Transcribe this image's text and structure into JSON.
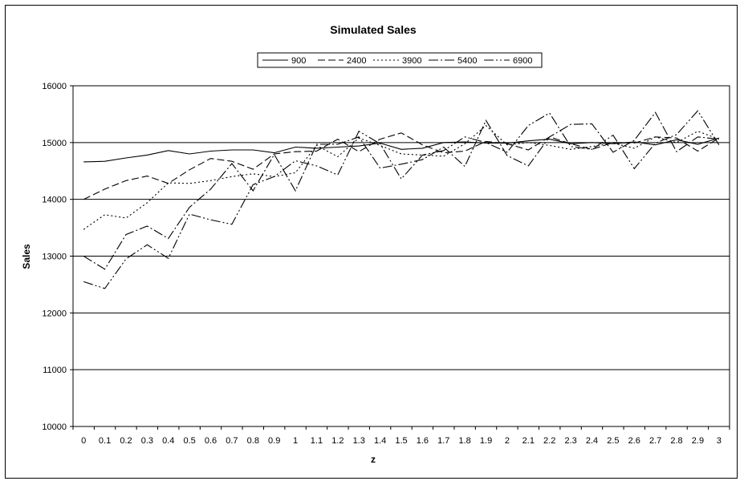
{
  "chart_data": {
    "type": "line",
    "title": "Simulated Sales",
    "xlabel": "z",
    "ylabel": "Sales",
    "ylim": [
      10000,
      16000
    ],
    "yticks": [
      10000,
      11000,
      12000,
      13000,
      14000,
      15000,
      16000
    ],
    "grid": "horizontal",
    "legend_position": "top",
    "x": [
      0,
      0.1,
      0.2,
      0.3,
      0.4,
      0.5,
      0.6,
      0.7,
      0.8,
      0.9,
      1,
      1.1,
      1.2,
      1.3,
      1.4,
      1.5,
      1.6,
      1.7,
      1.8,
      1.9,
      2,
      2.1,
      2.2,
      2.3,
      2.4,
      2.5,
      2.6,
      2.7,
      2.8,
      2.9,
      3
    ],
    "x_tick_labels": [
      "0",
      "0.1",
      "0.2",
      "0.3",
      "0.4",
      "0.5",
      "0.6",
      "0.7",
      "0.8",
      "0.9",
      "1",
      "1.1",
      "1.2",
      "1.3",
      "1.4",
      "1.5",
      "1.6",
      "1.7",
      "1.8",
      "1.9",
      "2",
      "2.1",
      "2.2",
      "2.3",
      "2.4",
      "2.5",
      "2.6",
      "2.7",
      "2.8",
      "2.9",
      "3"
    ],
    "series": [
      {
        "name": "900",
        "dash": "",
        "values": [
          14660,
          14670,
          14730,
          14780,
          14860,
          14800,
          14850,
          14870,
          14870,
          14820,
          14920,
          14900,
          14920,
          14940,
          14990,
          14880,
          14900,
          15000,
          15010,
          14990,
          14990,
          15030,
          15060,
          14980,
          15000,
          14980,
          15010,
          14960,
          15050,
          14970,
          15080
        ]
      },
      {
        "name": "2400",
        "dash": "9,4",
        "values": [
          14000,
          14180,
          14330,
          14410,
          14280,
          14520,
          14720,
          14670,
          14530,
          14800,
          14840,
          14850,
          15060,
          14840,
          15060,
          15170,
          14960,
          14820,
          14850,
          15020,
          14980,
          14870,
          15100,
          14980,
          14880,
          15000,
          14990,
          15100,
          15080,
          14850,
          15080
        ]
      },
      {
        "name": "3900",
        "dash": "2,3",
        "values": [
          13470,
          13730,
          13670,
          13940,
          14290,
          14280,
          14330,
          14400,
          14450,
          14400,
          14470,
          14950,
          14750,
          15080,
          14950,
          14800,
          14780,
          14760,
          14980,
          15300,
          14960,
          15000,
          14950,
          14880,
          14930,
          14990,
          14900,
          15100,
          15000,
          15200,
          15060
        ]
      },
      {
        "name": "5400",
        "dash": "12,3,2,3",
        "values": [
          13000,
          12770,
          13380,
          13530,
          13310,
          13860,
          14180,
          14630,
          14150,
          14790,
          14150,
          14970,
          14970,
          15100,
          14550,
          14620,
          14700,
          14920,
          14580,
          15390,
          14770,
          14590,
          15100,
          15320,
          15330,
          14830,
          15040,
          15530,
          14840,
          15100,
          15060
        ]
      },
      {
        "name": "6900",
        "dash": "12,3,2,3,2,3",
        "values": [
          12550,
          12430,
          12950,
          13200,
          12960,
          13740,
          13640,
          13560,
          14260,
          14400,
          14680,
          14590,
          14430,
          15200,
          14980,
          14360,
          14780,
          14860,
          15100,
          15000,
          14830,
          15300,
          15520,
          14930,
          14880,
          15130,
          14540,
          14990,
          15140,
          15560,
          14960
        ]
      }
    ]
  }
}
